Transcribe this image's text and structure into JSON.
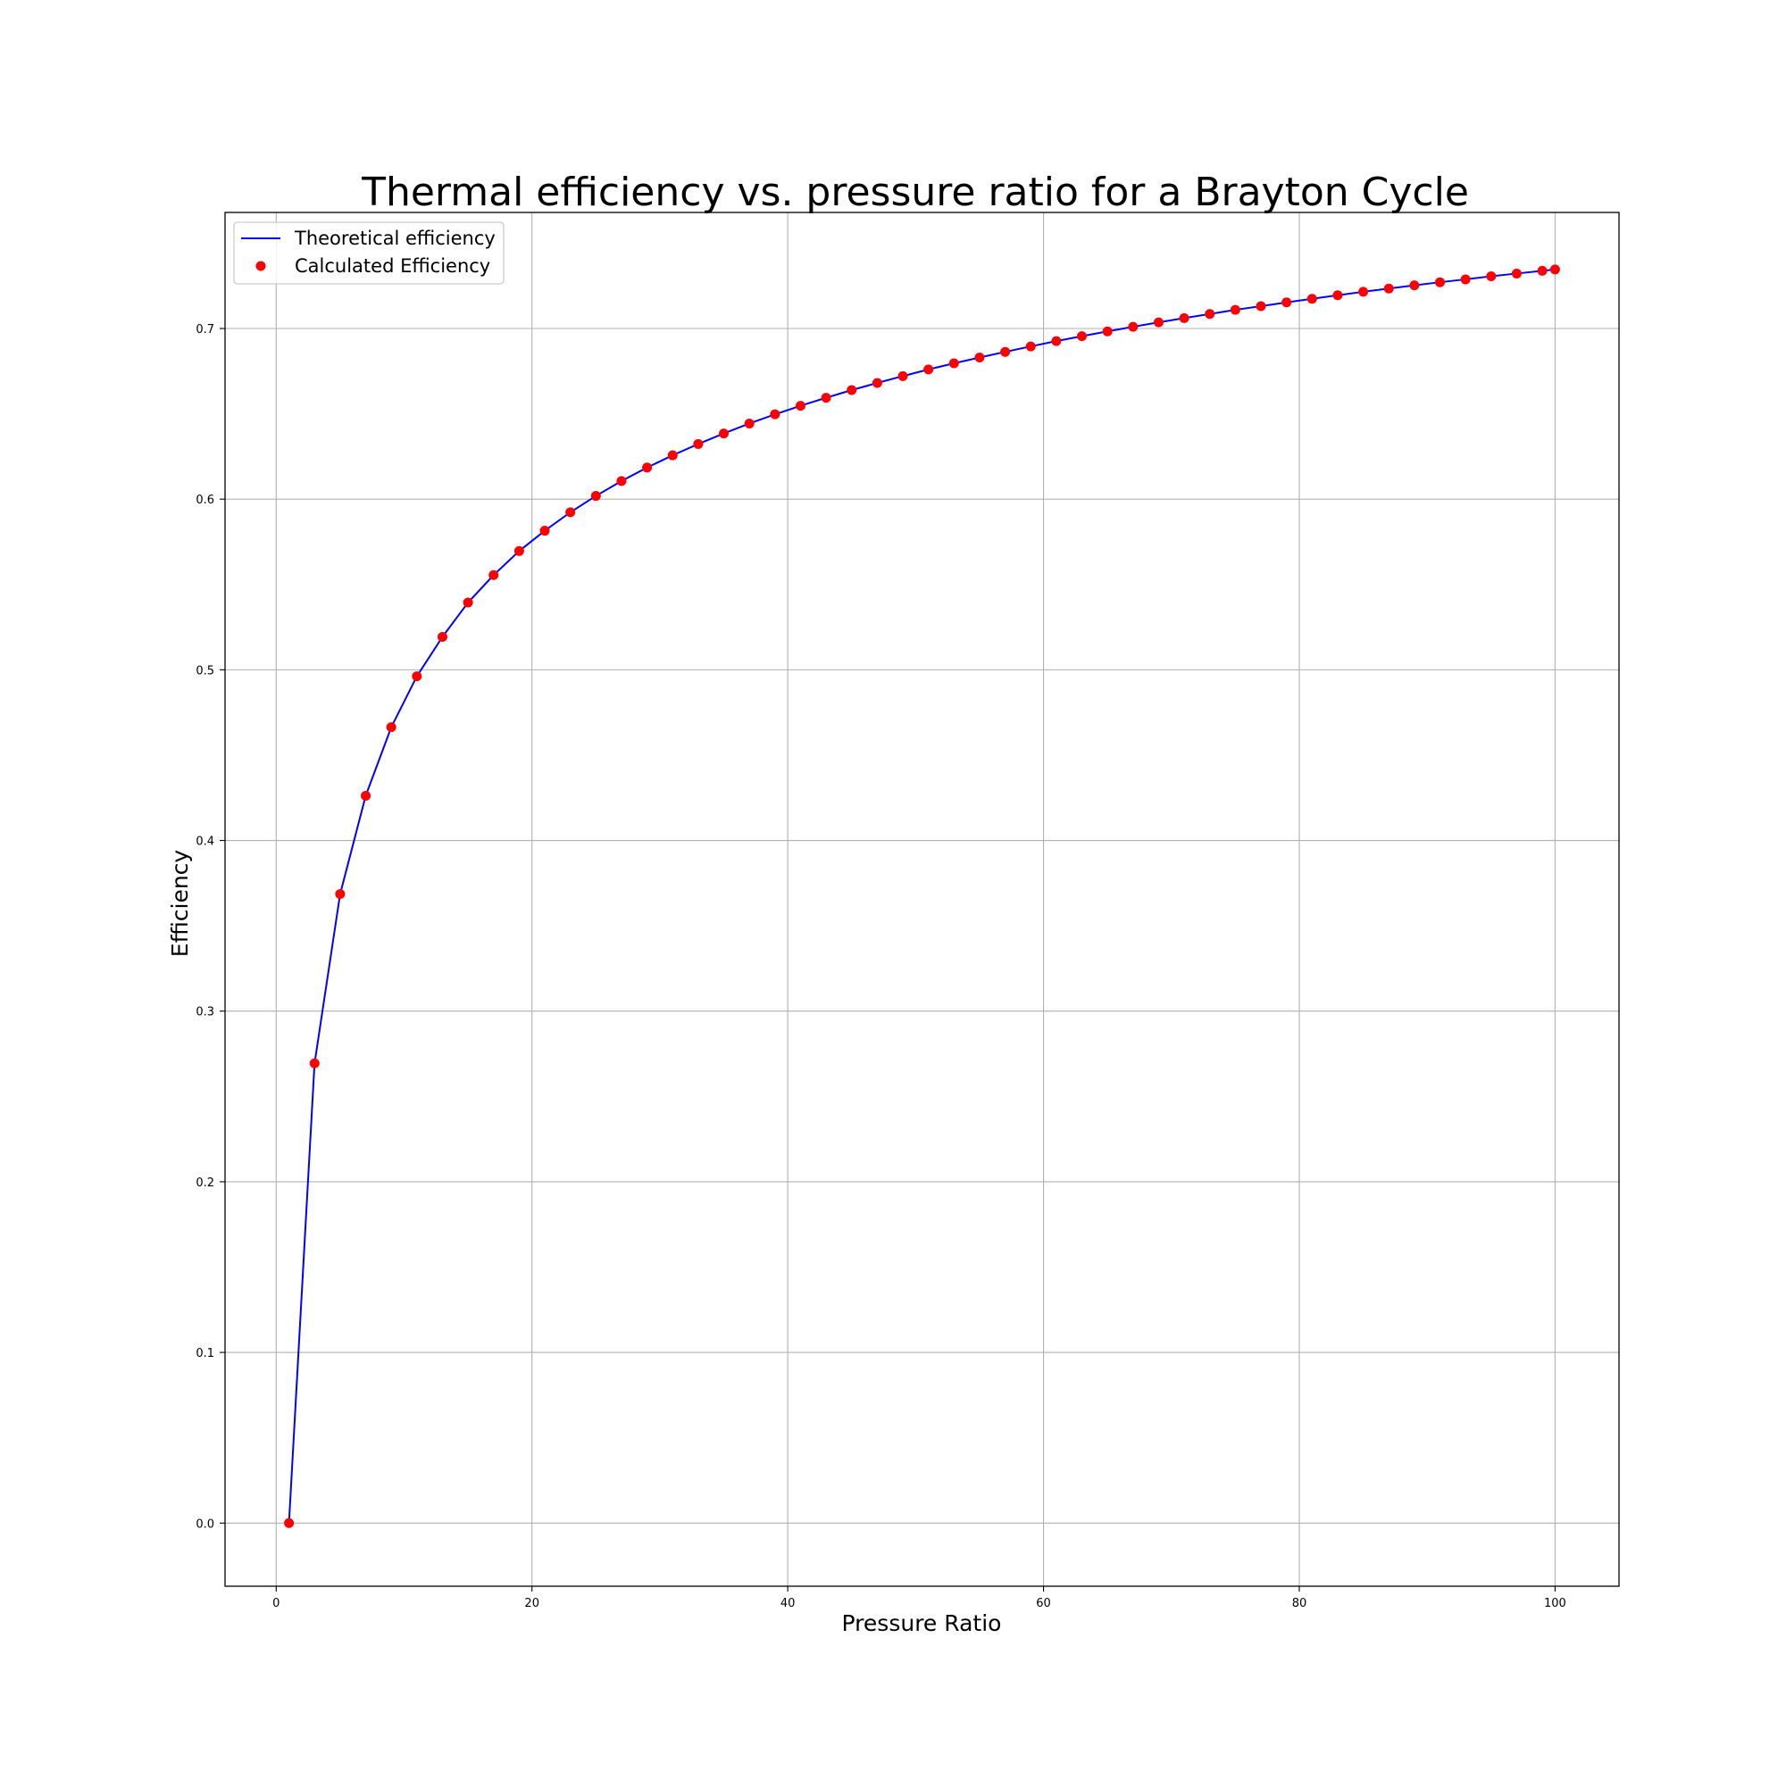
{
  "chart_data": {
    "type": "line",
    "title": "Thermal efficiency vs. pressure ratio for a Brayton Cycle",
    "xlabel": "Pressure Ratio",
    "ylabel": "Efficiency",
    "xlim": [
      -4,
      105
    ],
    "ylim": [
      -0.037,
      0.768
    ],
    "xticks": [
      0,
      20,
      40,
      60,
      80,
      100
    ],
    "yticks": [
      0.0,
      0.1,
      0.2,
      0.3,
      0.4,
      0.5,
      0.6,
      0.7
    ],
    "xtick_labels": [
      "0",
      "20",
      "40",
      "60",
      "80",
      "100"
    ],
    "ytick_labels": [
      "0.0",
      "0.1",
      "0.2",
      "0.3",
      "0.4",
      "0.5",
      "0.6",
      "0.7"
    ],
    "grid": true,
    "legend_position": "upper-left",
    "x": [
      1,
      3,
      5,
      7,
      9,
      11,
      13,
      15,
      17,
      19,
      21,
      23,
      25,
      27,
      29,
      31,
      33,
      35,
      37,
      39,
      41,
      43,
      45,
      47,
      49,
      51,
      53,
      55,
      57,
      59,
      61,
      63,
      65,
      67,
      69,
      71,
      73,
      75,
      77,
      79,
      81,
      83,
      85,
      87,
      89,
      91,
      93,
      95,
      97,
      99,
      100
    ],
    "series": [
      {
        "name": "Theoretical efficiency",
        "style": "line",
        "color": "#0000ff",
        "values": [
          0.0,
          0.2694,
          0.3686,
          0.4262,
          0.4664,
          0.4962,
          0.5193,
          0.5394,
          0.5555,
          0.5696,
          0.5815,
          0.5923,
          0.6019,
          0.6106,
          0.6185,
          0.6257,
          0.6323,
          0.6385,
          0.6443,
          0.6497,
          0.6547,
          0.6594,
          0.6639,
          0.6681,
          0.6721,
          0.676,
          0.6796,
          0.683,
          0.6863,
          0.6895,
          0.6926,
          0.6955,
          0.6983,
          0.701,
          0.7036,
          0.7061,
          0.7085,
          0.7109,
          0.7131,
          0.7153,
          0.7174,
          0.7195,
          0.7215,
          0.7234,
          0.7253,
          0.7271,
          0.7288,
          0.7306,
          0.7322,
          0.7338,
          0.7346
        ]
      },
      {
        "name": "Calculated Efficiency",
        "style": "marker",
        "color": "#ff0000",
        "values": [
          0.0,
          0.2694,
          0.3686,
          0.4262,
          0.4664,
          0.4962,
          0.5193,
          0.5394,
          0.5555,
          0.5696,
          0.5815,
          0.5923,
          0.6019,
          0.6106,
          0.6185,
          0.6257,
          0.6323,
          0.6385,
          0.6443,
          0.6497,
          0.6547,
          0.6594,
          0.6639,
          0.6681,
          0.6721,
          0.676,
          0.6796,
          0.683,
          0.6863,
          0.6895,
          0.6926,
          0.6955,
          0.6983,
          0.701,
          0.7036,
          0.7061,
          0.7085,
          0.7109,
          0.7131,
          0.7153,
          0.7174,
          0.7195,
          0.7215,
          0.7234,
          0.7253,
          0.7271,
          0.7288,
          0.7306,
          0.7322,
          0.7338,
          0.7346
        ]
      }
    ]
  }
}
